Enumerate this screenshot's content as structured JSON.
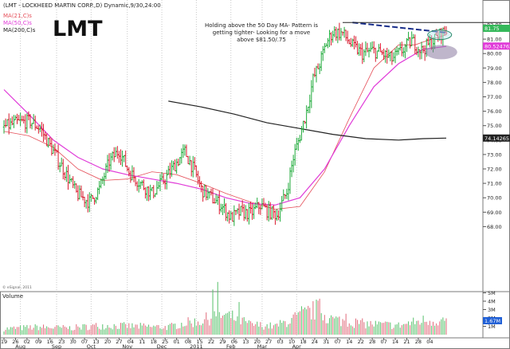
{
  "header": {
    "title": "(LMT - LOCKHEED MARTIN CORP.,D) Dynamic,9/30,24:00",
    "ticker": "LMT",
    "ma_labels": [
      {
        "text": "MA(21,C)s",
        "color": "#e5505a"
      },
      {
        "text": "MA(50,C)s",
        "color": "#e03bd8"
      },
      {
        "text": "MA(200,C)s",
        "color": "#222222"
      }
    ]
  },
  "annotation": {
    "lines": [
      "Holding above the 50 Day MA- Pattern is",
      "getting tighter- Looking for a move",
      "above $81.50/.75"
    ]
  },
  "price_axis": {
    "ticks": [
      "82.00",
      "81.00",
      "80.00",
      "79.00",
      "78.00",
      "77.00",
      "76.00",
      "75.00",
      "74.00",
      "73.00",
      "72.00",
      "71.00",
      "70.00",
      "69.00",
      "68.00"
    ],
    "badges": [
      {
        "text": "81.75",
        "value": 81.75,
        "color": "#35b85a"
      },
      {
        "text": "80.524762",
        "value": 80.52,
        "color": "#e03bd8"
      },
      {
        "text": "74.14265",
        "value": 74.14,
        "color": "#222222"
      }
    ]
  },
  "volume": {
    "label": "Volume",
    "ticks": [
      "5M",
      "4M",
      "3M",
      "2M",
      "1M"
    ],
    "badge": "1.67M"
  },
  "date_axis": {
    "day_labels": [
      "19",
      "26",
      "02",
      "09",
      "16",
      "23",
      "30",
      "07",
      "13",
      "20",
      "27",
      "04",
      "11",
      "18",
      "25",
      "01",
      "08",
      "15",
      "22",
      "29",
      "06",
      "13",
      "20",
      "27",
      "03",
      "10",
      "18",
      "24",
      "31",
      "07",
      "14",
      "22",
      "28",
      "07",
      "14",
      "21",
      "28",
      "04"
    ],
    "month_labels": [
      "Aug",
      "Sep",
      "Oct",
      "Nov",
      "Dec",
      "2011",
      "Feb",
      "Mar",
      "Apr"
    ]
  },
  "copyright": "© eSignal, 2011",
  "chart_data": {
    "type": "line",
    "title": "LMT",
    "x_range": [
      "2010-07-19",
      "2011-04-08"
    ],
    "ylim": [
      67.5,
      82.5
    ],
    "volume_ylim": [
      0,
      6
    ],
    "series": [
      {
        "name": "MA(21,C)s",
        "color": "#e5505a",
        "points": [
          [
            0,
            74.6
          ],
          [
            15,
            74.3
          ],
          [
            30,
            73.5
          ],
          [
            45,
            72.0
          ],
          [
            60,
            71.2
          ],
          [
            75,
            71.3
          ],
          [
            90,
            71.8
          ],
          [
            105,
            71.6
          ],
          [
            120,
            71.0
          ],
          [
            135,
            70.3
          ],
          [
            150,
            69.7
          ],
          [
            165,
            69.2
          ],
          [
            180,
            69.4
          ],
          [
            195,
            71.8
          ],
          [
            210,
            75.5
          ],
          [
            225,
            79.0
          ],
          [
            240,
            80.6
          ],
          [
            250,
            80.6
          ],
          [
            260,
            81.0
          ],
          [
            269,
            81.3
          ]
        ]
      },
      {
        "name": "MA(50,C)s",
        "color": "#e03bd8",
        "points": [
          [
            0,
            77.5
          ],
          [
            15,
            75.8
          ],
          [
            30,
            74.0
          ],
          [
            45,
            72.8
          ],
          [
            60,
            72.0
          ],
          [
            75,
            71.6
          ],
          [
            90,
            71.3
          ],
          [
            105,
            71.0
          ],
          [
            120,
            70.6
          ],
          [
            135,
            70.0
          ],
          [
            150,
            69.6
          ],
          [
            165,
            69.5
          ],
          [
            180,
            70.0
          ],
          [
            195,
            72.0
          ],
          [
            210,
            75.0
          ],
          [
            225,
            77.7
          ],
          [
            240,
            79.3
          ],
          [
            255,
            80.3
          ],
          [
            269,
            80.5
          ]
        ]
      },
      {
        "name": "MA(200,C)s",
        "color": "#222222",
        "points": [
          [
            100,
            76.7
          ],
          [
            120,
            76.3
          ],
          [
            140,
            75.8
          ],
          [
            160,
            75.2
          ],
          [
            180,
            74.8
          ],
          [
            200,
            74.4
          ],
          [
            220,
            74.1
          ],
          [
            240,
            74.0
          ],
          [
            255,
            74.1
          ],
          [
            269,
            74.14
          ]
        ]
      }
    ],
    "price_path": [
      [
        0,
        74.9
      ],
      [
        8,
        75.2
      ],
      [
        16,
        75.3
      ],
      [
        22,
        74.8
      ],
      [
        28,
        73.6
      ],
      [
        36,
        72.0
      ],
      [
        44,
        70.3
      ],
      [
        52,
        69.7
      ],
      [
        58,
        70.6
      ],
      [
        64,
        72.5
      ],
      [
        70,
        73.3
      ],
      [
        76,
        71.8
      ],
      [
        82,
        71.1
      ],
      [
        90,
        70.3
      ],
      [
        98,
        71.3
      ],
      [
        104,
        72.3
      ],
      [
        110,
        73.2
      ],
      [
        116,
        71.8
      ],
      [
        120,
        70.6
      ],
      [
        126,
        70.0
      ],
      [
        132,
        69.5
      ],
      [
        138,
        68.6
      ],
      [
        144,
        69.0
      ],
      [
        150,
        68.9
      ],
      [
        156,
        69.5
      ],
      [
        160,
        69.1
      ],
      [
        166,
        68.8
      ],
      [
        172,
        70.4
      ],
      [
        176,
        72.8
      ],
      [
        180,
        74.3
      ],
      [
        184,
        76.0
      ],
      [
        188,
        78.2
      ],
      [
        192,
        79.3
      ],
      [
        196,
        80.7
      ],
      [
        200,
        81.5
      ],
      [
        206,
        81.4
      ],
      [
        212,
        80.5
      ],
      [
        218,
        80.0
      ],
      [
        224,
        80.2
      ],
      [
        230,
        80.0
      ],
      [
        236,
        79.6
      ],
      [
        242,
        80.2
      ],
      [
        248,
        80.9
      ],
      [
        254,
        80.2
      ],
      [
        260,
        80.8
      ],
      [
        266,
        81.4
      ],
      [
        269,
        81.6
      ]
    ],
    "volume_path": [
      [
        0,
        0.7
      ],
      [
        20,
        0.9
      ],
      [
        40,
        0.8
      ],
      [
        60,
        1.1
      ],
      [
        80,
        1.0
      ],
      [
        100,
        0.9
      ],
      [
        110,
        1.4
      ],
      [
        120,
        1.6
      ],
      [
        130,
        2.4
      ],
      [
        140,
        2.0
      ],
      [
        150,
        1.2
      ],
      [
        165,
        1.0
      ],
      [
        180,
        2.2
      ],
      [
        190,
        3.0
      ],
      [
        200,
        1.8
      ],
      [
        220,
        1.3
      ],
      [
        240,
        1.1
      ],
      [
        255,
        1.7
      ],
      [
        269,
        1.67
      ]
    ],
    "volume_spikes": [
      [
        127,
        5.4
      ],
      [
        130,
        6.3
      ],
      [
        143,
        3.9
      ],
      [
        181,
        3.4
      ],
      [
        192,
        4.3
      ],
      [
        208,
        2.5
      ]
    ],
    "resistance_line": {
      "from": [
        212,
        82.15
      ],
      "to": [
        269,
        81.45
      ]
    },
    "highlights": [
      {
        "kind": "tight-range",
        "center": [
          265,
          81.3
        ]
      },
      {
        "kind": "ma-support",
        "center": [
          266,
          80.1
        ]
      }
    ]
  }
}
